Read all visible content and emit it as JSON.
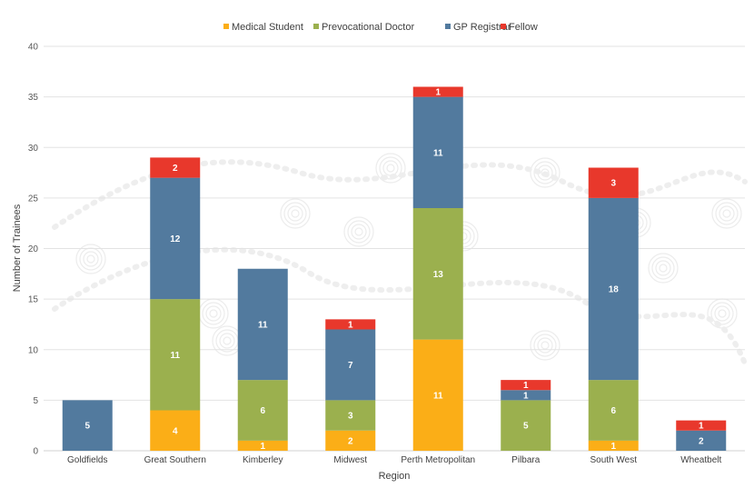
{
  "chart_data": {
    "type": "bar",
    "stacked": true,
    "title": "",
    "xlabel": "Region",
    "ylabel": "Number of Trainees",
    "ylim": [
      0,
      40
    ],
    "yticks": [
      0,
      5,
      10,
      15,
      20,
      25,
      30,
      35,
      40
    ],
    "grid": true,
    "legend_position": "top",
    "categories": [
      "Goldfields",
      "Great Southern",
      "Kimberley",
      "Midwest",
      "Perth Metropolitan",
      "Pilbara",
      "South West",
      "Wheatbelt"
    ],
    "series": [
      {
        "name": "Medical Student",
        "color": "#FBAE17",
        "values": [
          0,
          4,
          1,
          2,
          11,
          0,
          1,
          0
        ]
      },
      {
        "name": "Prevocational Doctor",
        "color": "#9BB04E",
        "values": [
          0,
          11,
          6,
          3,
          13,
          5,
          6,
          0
        ]
      },
      {
        "name": "GP Registrar",
        "color": "#527A9E",
        "values": [
          5,
          12,
          11,
          7,
          11,
          1,
          18,
          2
        ]
      },
      {
        "name": "Fellow",
        "color": "#E8382C",
        "values": [
          0,
          2,
          0,
          1,
          1,
          1,
          3,
          1
        ]
      }
    ]
  }
}
